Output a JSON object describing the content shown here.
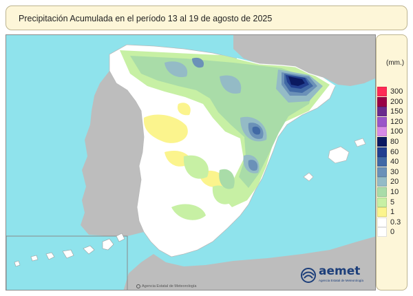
{
  "title": "Precipitación Acumulada en el período 13 al 19 de agosto de 2025",
  "legend": {
    "unit": "(mm.)",
    "items": [
      {
        "label": "300",
        "color": "#ff2a55"
      },
      {
        "label": "200",
        "color": "#990044"
      },
      {
        "label": "150",
        "color": "#6a2b8c"
      },
      {
        "label": "120",
        "color": "#9a55c8"
      },
      {
        "label": "100",
        "color": "#d78ae6"
      },
      {
        "label": "80",
        "color": "#0b1960"
      },
      {
        "label": "60",
        "color": "#223f8f"
      },
      {
        "label": "40",
        "color": "#4169a5"
      },
      {
        "label": "30",
        "color": "#6b91b8"
      },
      {
        "label": "20",
        "color": "#94bbc6"
      },
      {
        "label": "10",
        "color": "#a9dca8"
      },
      {
        "label": "5",
        "color": "#c7f0a4"
      },
      {
        "label": "1",
        "color": "#fbf48d"
      },
      {
        "label": "0.3",
        "color": "#ffffff"
      },
      {
        "label": "0",
        "color": "#ffffff"
      }
    ]
  },
  "colors": {
    "sea": "#8fe3ec",
    "foreign_land": "#bdbdbd",
    "spain_land": "#ffffff"
  },
  "logo": {
    "name": "aemet",
    "subtitle": "Agencia Estatal de Meteorología"
  },
  "credit": "Agencia Estatal de Meteorología"
}
